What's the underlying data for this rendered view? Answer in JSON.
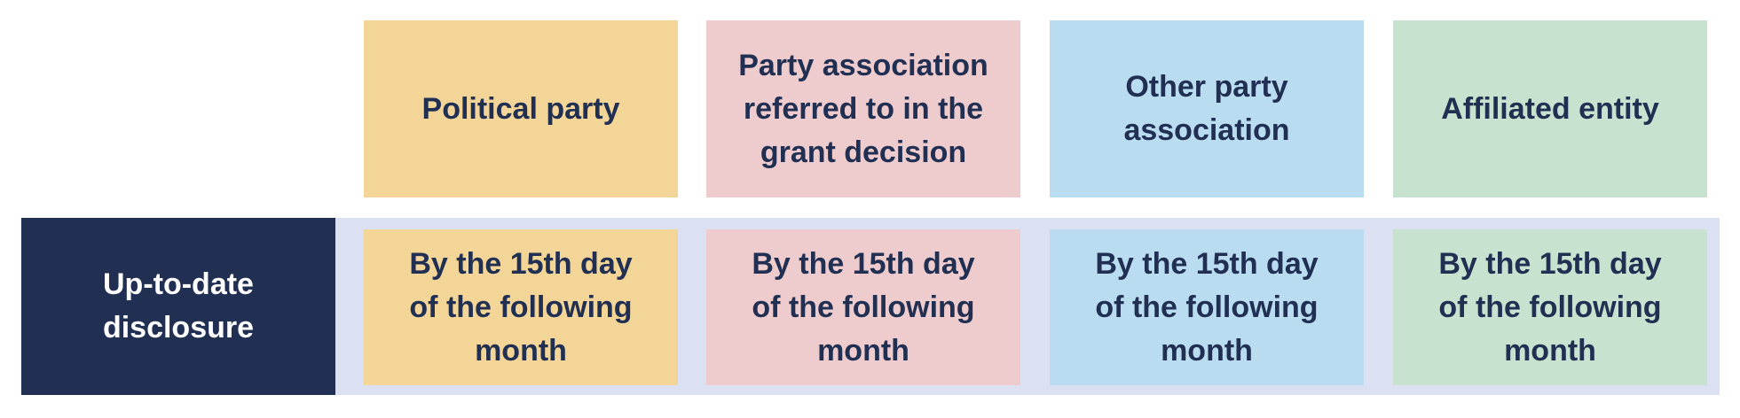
{
  "columns": [
    {
      "label": "Political party",
      "color": "#f4d598"
    },
    {
      "label": "Party association\nreferred to in the\ngrant decision",
      "color": "#eecbcd"
    },
    {
      "label": "Other party\nassociation",
      "color": "#badcf1"
    },
    {
      "label": "Affiliated entity",
      "color": "#c8e2d0"
    }
  ],
  "row": {
    "label": "Up-to-date\ndisclosure",
    "label_color": "#213052",
    "band_color": "#dbe0f3",
    "cells": [
      "By the 15th day\nof the following\nmonth",
      "By the 15th day\nof the following\nmonth",
      "By the 15th day\nof the following\nmonth",
      "By the 15th day\nof the following\nmonth"
    ]
  }
}
